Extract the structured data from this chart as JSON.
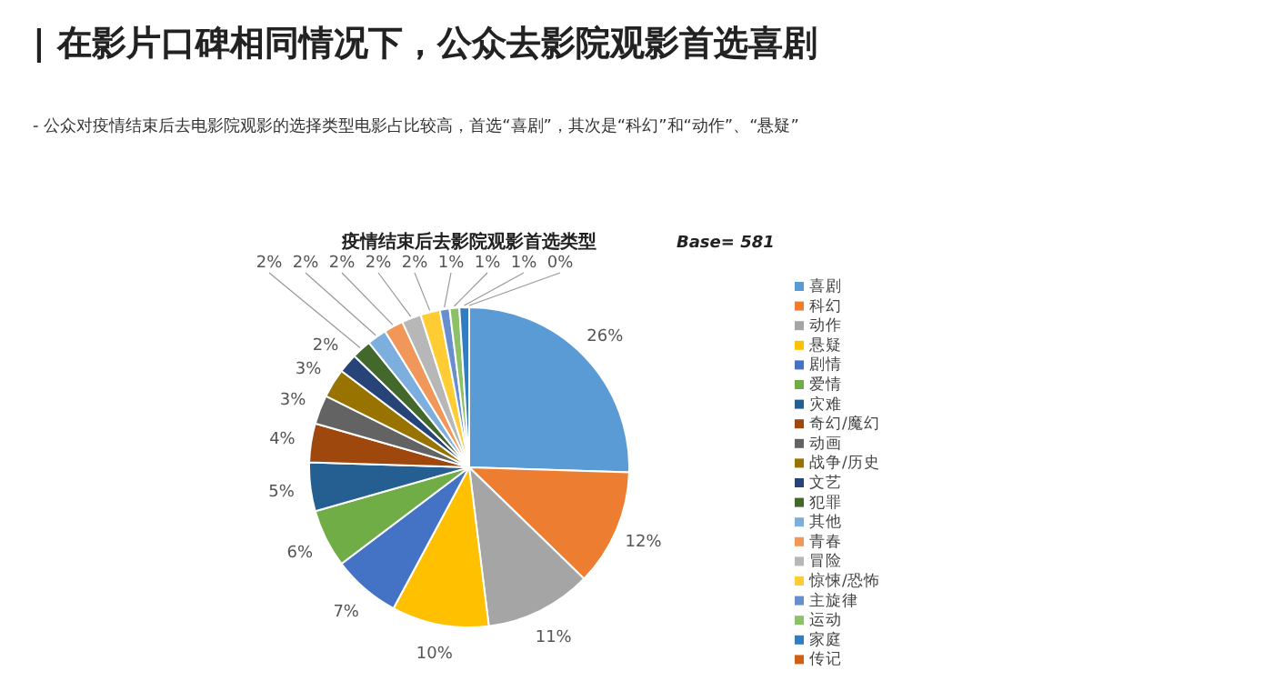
{
  "chart_data": {
    "type": "pie",
    "title": "疫情结束后去影院观影首选类型",
    "annotations": [
      "| 在影片口碑相同情况下，公众去影院观影首选喜剧",
      "-    公众对疫情结束后去电影院观影的选择类型电影占比较高，首选“喜剧”，其次是“科幻”和“动作”、“悬疑”",
      "Base= 581"
    ],
    "categories": [
      "喜剧",
      "科幻",
      "动作",
      "悬疑",
      "剧情",
      "爱情",
      "灾难",
      "奇幻/魔幻",
      "动画",
      "战争/历史",
      "文艺",
      "犯罪",
      "其他",
      "青春",
      "冒险",
      "惊悚/恐怖",
      "主旋律",
      "运动",
      "家庭",
      "传记"
    ],
    "values": [
      26,
      12,
      11,
      10,
      7,
      6,
      5,
      4,
      3,
      3,
      2,
      2,
      2,
      2,
      2,
      2,
      1,
      1,
      1,
      0
    ],
    "value_labels": [
      "26%",
      "12%",
      "11%",
      "10%",
      "7%",
      "6%",
      "5%",
      "4%",
      "3%",
      "3%",
      "2%",
      "2%",
      "2%",
      "2%",
      "2%",
      "2%",
      "1%",
      "1%",
      "1%",
      "0%"
    ],
    "colors": [
      "#5b9bd5",
      "#ed7d31",
      "#a5a5a5",
      "#ffc000",
      "#4472c4",
      "#70ad47",
      "#255e91",
      "#9e480e",
      "#636363",
      "#997300",
      "#264478",
      "#43682b",
      "#7cafdd",
      "#f1975a",
      "#b7b7b7",
      "#ffcd33",
      "#698ed0",
      "#8cc168",
      "#327dc2",
      "#d26012"
    ],
    "legend": "right"
  }
}
